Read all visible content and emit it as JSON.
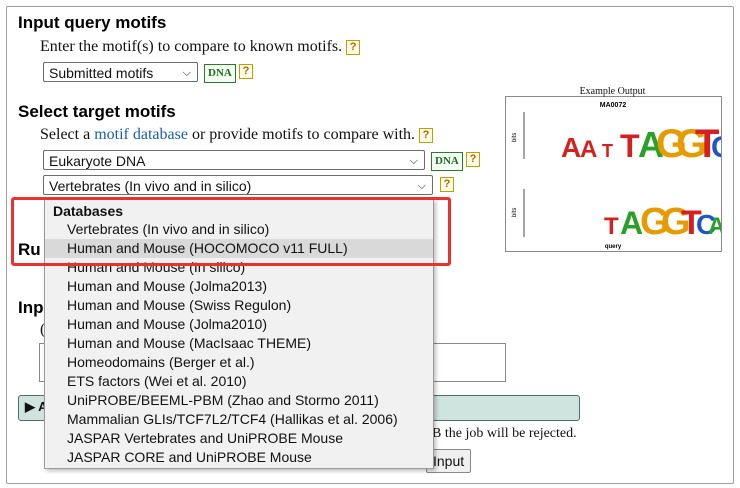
{
  "query": {
    "heading": "Input query motifs",
    "instruction": "Enter the motif(s) to compare to known motifs.",
    "select_value": "Submitted motifs",
    "dna_badge": "DNA",
    "help": "?"
  },
  "target": {
    "heading": "Select target motifs",
    "instruction_prefix": "Select a",
    "instruction_link": "motif database",
    "instruction_suffix": "or provide motifs to compare with.",
    "db_category_value": "Eukaryote DNA",
    "db_value": "Vertebrates (In vivo and in silico)",
    "dna_badge": "DNA",
    "help": "?"
  },
  "example_output": {
    "title": "Example Output",
    "motif_id": "MA0072",
    "ylabel": "bits",
    "top_letters": "AAITAGGTCA",
    "bottom_letters": "TAGGTCA",
    "query_label": "query"
  },
  "dropdown": {
    "header": "Databases",
    "items": [
      "Vertebrates (In vivo and in silico)",
      "Human and Mouse (HOCOMOCO v11 FULL)",
      "Human and Mouse (In silico)",
      "Human and Mouse (Jolma2013)",
      "Human and Mouse (Swiss Regulon)",
      "Human and Mouse (Jolma2010)",
      "Human and Mouse (MacIsaac THEME)",
      "Homeodomains (Berger et al.)",
      "ETS factors (Wei et al. 2010)",
      "UniPROBE/BEEML-PBM (Zhao and Stormo 2011)",
      "Mammalian GLIs/TCF7L2/TCF4 (Hallikas et al. 2006)",
      "JASPAR Vertebrates and UniPROBE Mouse",
      "JASPAR CORE and UniPROBE Mouse"
    ]
  },
  "background": {
    "run_heading_partial": "Ru",
    "input_heading_partial": "Inp",
    "paren_partial": "(",
    "go_button_partial": "▶ A",
    "note_partial": "B the job will be rejected.",
    "input_button_partial": "Input"
  },
  "colors": {
    "highlight": "#e8322b",
    "link": "#1a5fa8",
    "dna_badge": "#1f6b1f"
  }
}
